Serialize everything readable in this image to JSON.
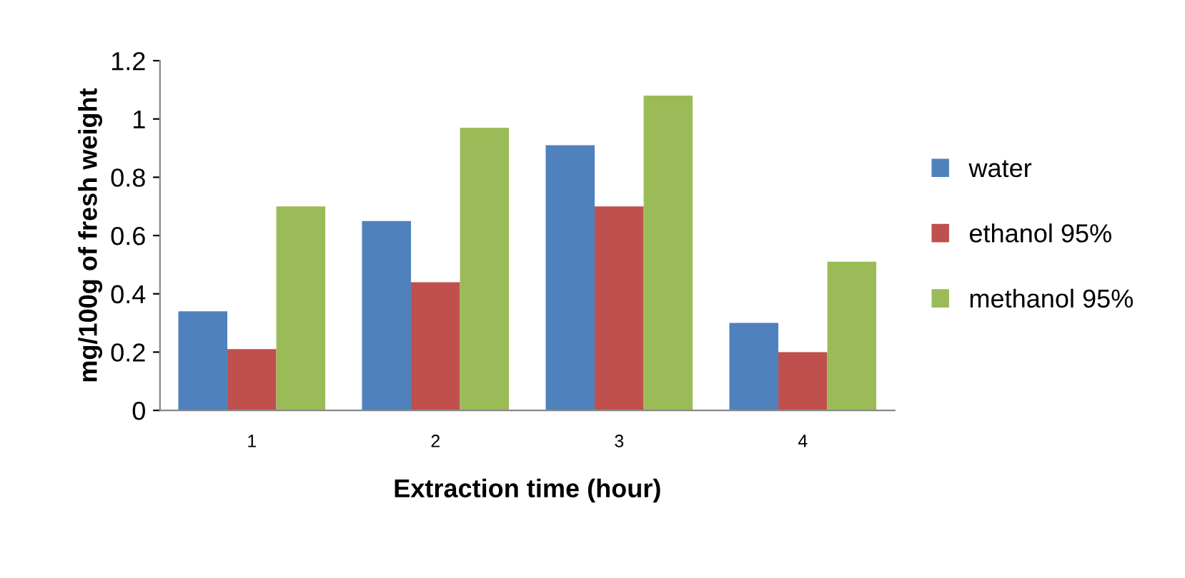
{
  "chart_data": {
    "type": "bar",
    "xlabel": "Extraction time (hour)",
    "ylabel": "mg/100g of fresh weight",
    "categories": [
      "1",
      "2",
      "3",
      "4"
    ],
    "series": [
      {
        "name": "water",
        "color": "#4f81bd",
        "values": [
          0.34,
          0.65,
          0.91,
          0.3
        ]
      },
      {
        "name": "ethanol 95%",
        "color": "#c0504d",
        "values": [
          0.21,
          0.44,
          0.7,
          0.2
        ]
      },
      {
        "name": "methanol 95%",
        "color": "#9bbb59",
        "values": [
          0.7,
          0.97,
          1.08,
          0.51
        ]
      }
    ],
    "ylim": [
      0,
      1.2
    ],
    "yticks": [
      {
        "value": 0,
        "label": "0"
      },
      0.2,
      0.4,
      0.6,
      0.8,
      {
        "value": 1,
        "label": "1"
      },
      1.2
    ],
    "grid": false,
    "legend": "right"
  }
}
